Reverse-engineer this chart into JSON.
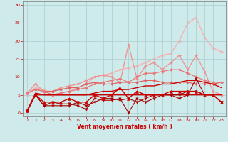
{
  "bg_color": "#ceeaea",
  "grid_color": "#aacccc",
  "xlabel": "Vent moyen/en rafales ( km/h )",
  "xlabel_color": "#cc0000",
  "tick_label_color": "#cc0000",
  "xlim": [
    -0.5,
    23.5
  ],
  "ylim": [
    -1,
    31
  ],
  "yticks": [
    0,
    5,
    10,
    15,
    20,
    25,
    30
  ],
  "xticks": [
    0,
    1,
    2,
    3,
    4,
    5,
    6,
    7,
    8,
    9,
    10,
    11,
    12,
    13,
    14,
    15,
    16,
    17,
    18,
    19,
    20,
    21,
    22,
    23
  ],
  "series": [
    {
      "x": [
        0,
        1,
        2,
        3,
        4,
        5,
        6,
        7,
        8,
        9,
        10,
        11,
        12,
        13,
        14,
        15,
        16,
        17,
        18,
        19,
        20,
        21,
        22,
        23
      ],
      "y": [
        0.5,
        5,
        5,
        5,
        5,
        5,
        5,
        5,
        5,
        5,
        5,
        5,
        5,
        5,
        5,
        5,
        5,
        5,
        5,
        5,
        5,
        5,
        5,
        5
      ],
      "color": "#cc0000",
      "lw": 1.0,
      "marker": null,
      "alpha": 1.0,
      "zorder": 3
    },
    {
      "x": [
        0,
        1,
        2,
        3,
        4,
        5,
        6,
        7,
        8,
        9,
        10,
        11,
        12,
        13,
        14,
        15,
        16,
        17,
        18,
        19,
        20,
        21,
        22,
        23
      ],
      "y": [
        0.5,
        5,
        2,
        3,
        2.5,
        2.5,
        2,
        1,
        4,
        3.5,
        3.5,
        4,
        0,
        4,
        3,
        4,
        5,
        5,
        4,
        5,
        9.5,
        5,
        5,
        3
      ],
      "color": "#aa0000",
      "lw": 0.8,
      "marker": "v",
      "markersize": 2.5,
      "alpha": 1.0,
      "zorder": 5
    },
    {
      "x": [
        0,
        1,
        2,
        3,
        4,
        5,
        6,
        7,
        8,
        9,
        10,
        11,
        12,
        13,
        14,
        15,
        16,
        17,
        18,
        19,
        20,
        21,
        22,
        23
      ],
      "y": [
        0.5,
        5,
        2,
        2,
        2,
        2,
        3,
        2,
        3,
        4,
        4,
        3.5,
        4,
        3,
        4,
        5,
        5,
        5,
        5,
        6,
        6,
        5,
        5,
        3
      ],
      "color": "#aa0000",
      "lw": 0.8,
      "marker": "v",
      "markersize": 2.5,
      "alpha": 1.0,
      "zorder": 5
    },
    {
      "x": [
        0,
        1,
        2,
        3,
        4,
        5,
        6,
        7,
        8,
        9,
        10,
        11,
        12,
        13,
        14,
        15,
        16,
        17,
        18,
        19,
        20,
        21,
        22,
        23
      ],
      "y": [
        0.5,
        5,
        3,
        3,
        3,
        4,
        3,
        3,
        5,
        4,
        5,
        7,
        4,
        6,
        5,
        5,
        5,
        6,
        6,
        6,
        6,
        5,
        5,
        3
      ],
      "color": "#cc0000",
      "lw": 1.0,
      "marker": "^",
      "markersize": 3.0,
      "alpha": 1.0,
      "zorder": 5
    },
    {
      "x": [
        0,
        1,
        2,
        3,
        4,
        5,
        6,
        7,
        8,
        9,
        10,
        11,
        12,
        13,
        14,
        15,
        16,
        17,
        18,
        19,
        20,
        21,
        22,
        23
      ],
      "y": [
        0.5,
        5.5,
        5,
        5,
        5,
        5,
        5,
        5,
        5.5,
        6,
        6,
        6.5,
        6.5,
        7,
        7.5,
        7.5,
        8,
        8,
        8.5,
        9,
        9,
        8.5,
        8,
        7
      ],
      "color": "#cc0000",
      "lw": 1.0,
      "marker": null,
      "alpha": 1.0,
      "zorder": 4
    },
    {
      "x": [
        0,
        1,
        2,
        3,
        4,
        5,
        6,
        7,
        8,
        9,
        10,
        11,
        12,
        13,
        14,
        15,
        16,
        17,
        18,
        19,
        20,
        21,
        22,
        23
      ],
      "y": [
        5.5,
        6.5,
        6,
        6,
        6.5,
        7,
        7,
        8,
        8.5,
        8,
        8,
        8.5,
        8.5,
        8.5,
        9,
        9,
        8.5,
        8.5,
        8.5,
        8.5,
        8,
        8,
        8,
        8.5
      ],
      "color": "#e06060",
      "lw": 0.9,
      "marker": "D",
      "markersize": 2.0,
      "alpha": 1.0,
      "zorder": 3
    },
    {
      "x": [
        0,
        1,
        2,
        3,
        4,
        5,
        6,
        7,
        8,
        9,
        10,
        11,
        12,
        13,
        14,
        15,
        16,
        17,
        18,
        19,
        20,
        21,
        22,
        23
      ],
      "y": [
        5.5,
        6.5,
        6,
        5,
        5.5,
        6,
        6.5,
        7,
        8,
        8.5,
        9,
        9.5,
        8.5,
        10,
        11,
        11,
        11.5,
        12,
        12,
        11,
        10,
        9,
        8.5,
        8.5
      ],
      "color": "#e87878",
      "lw": 0.9,
      "marker": "D",
      "markersize": 2.0,
      "alpha": 1.0,
      "zorder": 3
    },
    {
      "x": [
        0,
        1,
        2,
        3,
        4,
        5,
        6,
        7,
        8,
        9,
        10,
        11,
        12,
        13,
        14,
        15,
        16,
        17,
        18,
        19,
        20,
        21,
        22,
        23
      ],
      "y": [
        5.5,
        8,
        6,
        6,
        7,
        7.5,
        8,
        9,
        10,
        10.5,
        10,
        8.5,
        19,
        9.5,
        13,
        14,
        12,
        14,
        16,
        12,
        16,
        11.5,
        6,
        5
      ],
      "color": "#f09090",
      "lw": 0.9,
      "marker": "D",
      "markersize": 2.0,
      "alpha": 1.0,
      "zorder": 2
    },
    {
      "x": [
        0,
        1,
        2,
        3,
        4,
        5,
        6,
        7,
        8,
        9,
        10,
        11,
        12,
        13,
        14,
        15,
        16,
        17,
        18,
        19,
        20,
        21,
        22,
        23
      ],
      "y": [
        5,
        7,
        6.5,
        5,
        5.5,
        6,
        7,
        8,
        10,
        10.5,
        11,
        12,
        12.5,
        13,
        14,
        15,
        16,
        16.5,
        20,
        25,
        26.5,
        21,
        18,
        17
      ],
      "color": "#f8b0b0",
      "lw": 1.0,
      "marker": "D",
      "markersize": 2.0,
      "alpha": 1.0,
      "zorder": 1
    }
  ]
}
